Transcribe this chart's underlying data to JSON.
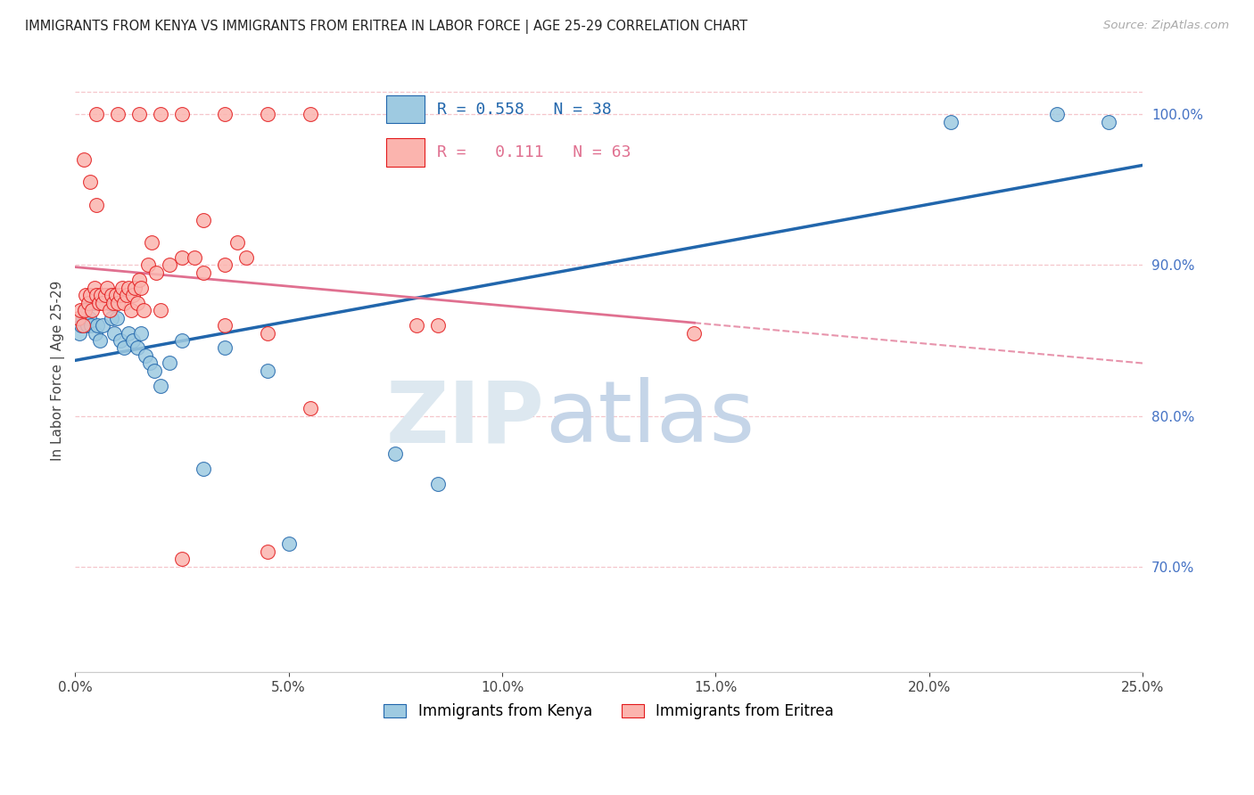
{
  "title": "IMMIGRANTS FROM KENYA VS IMMIGRANTS FROM ERITREA IN LABOR FORCE | AGE 25-29 CORRELATION CHART",
  "source": "Source: ZipAtlas.com",
  "ylabel": "In Labor Force | Age 25-29",
  "xlim_pct": [
    0.0,
    25.0
  ],
  "ylim_pct": [
    63.0,
    103.0
  ],
  "yticks_pct": [
    70.0,
    80.0,
    90.0,
    100.0
  ],
  "xticks_pct": [
    0.0,
    5.0,
    10.0,
    15.0,
    20.0,
    25.0
  ],
  "kenya_R": "0.558",
  "kenya_N": "38",
  "eritrea_R": "0.111",
  "eritrea_N": "63",
  "kenya_dot_color": "#9ecae1",
  "kenya_edge_color": "#2166ac",
  "eritrea_dot_color": "#fbb4ae",
  "eritrea_edge_color": "#e31a1c",
  "kenya_line_color": "#2166ac",
  "eritrea_line_color": "#e07090",
  "grid_color": "#f5c6cb",
  "kenya_x": [
    0.1,
    0.15,
    0.18,
    0.22,
    0.28,
    0.32,
    0.38,
    0.42,
    0.48,
    0.52,
    0.58,
    0.65,
    0.72,
    0.78,
    0.85,
    0.92,
    0.98,
    1.05,
    1.15,
    1.25,
    1.35,
    1.45,
    1.55,
    1.65,
    1.75,
    1.85,
    2.0,
    2.2,
    2.5,
    3.0,
    3.5,
    4.5,
    5.0,
    7.5,
    8.5,
    20.5,
    23.0,
    24.2
  ],
  "kenya_y": [
    85.5,
    86.0,
    86.5,
    87.0,
    86.0,
    86.5,
    86.0,
    87.5,
    85.5,
    86.0,
    85.0,
    86.0,
    88.0,
    87.5,
    86.5,
    85.5,
    86.5,
    85.0,
    84.5,
    85.5,
    85.0,
    84.5,
    85.5,
    84.0,
    83.5,
    83.0,
    82.0,
    83.5,
    85.0,
    76.5,
    84.5,
    83.0,
    71.5,
    77.5,
    75.5,
    99.5,
    100.0,
    99.5
  ],
  "eritrea_x": [
    0.08,
    0.12,
    0.18,
    0.22,
    0.25,
    0.3,
    0.35,
    0.4,
    0.45,
    0.5,
    0.55,
    0.6,
    0.65,
    0.7,
    0.75,
    0.8,
    0.85,
    0.9,
    0.95,
    1.0,
    1.05,
    1.1,
    1.15,
    1.2,
    1.25,
    1.3,
    1.35,
    1.4,
    1.45,
    1.5,
    1.55,
    1.6,
    1.7,
    1.8,
    1.9,
    2.0,
    2.2,
    2.5,
    2.8,
    3.0,
    3.5,
    3.8,
    4.0,
    0.5,
    1.0,
    1.5,
    2.0,
    2.5,
    3.5,
    4.5,
    5.5,
    3.0,
    4.5,
    5.5,
    14.5,
    3.5,
    8.0,
    2.5,
    4.5,
    8.5,
    0.2,
    0.35,
    0.5
  ],
  "eritrea_y": [
    86.5,
    87.0,
    86.0,
    87.0,
    88.0,
    87.5,
    88.0,
    87.0,
    88.5,
    88.0,
    87.5,
    88.0,
    87.5,
    88.0,
    88.5,
    87.0,
    88.0,
    87.5,
    88.0,
    87.5,
    88.0,
    88.5,
    87.5,
    88.0,
    88.5,
    87.0,
    88.0,
    88.5,
    87.5,
    89.0,
    88.5,
    87.0,
    90.0,
    91.5,
    89.5,
    87.0,
    90.0,
    90.5,
    90.5,
    89.5,
    90.0,
    91.5,
    90.5,
    100.0,
    100.0,
    100.0,
    100.0,
    100.0,
    100.0,
    100.0,
    100.0,
    93.0,
    85.5,
    80.5,
    85.5,
    86.0,
    86.0,
    70.5,
    71.0,
    86.0,
    97.0,
    95.5,
    94.0
  ]
}
